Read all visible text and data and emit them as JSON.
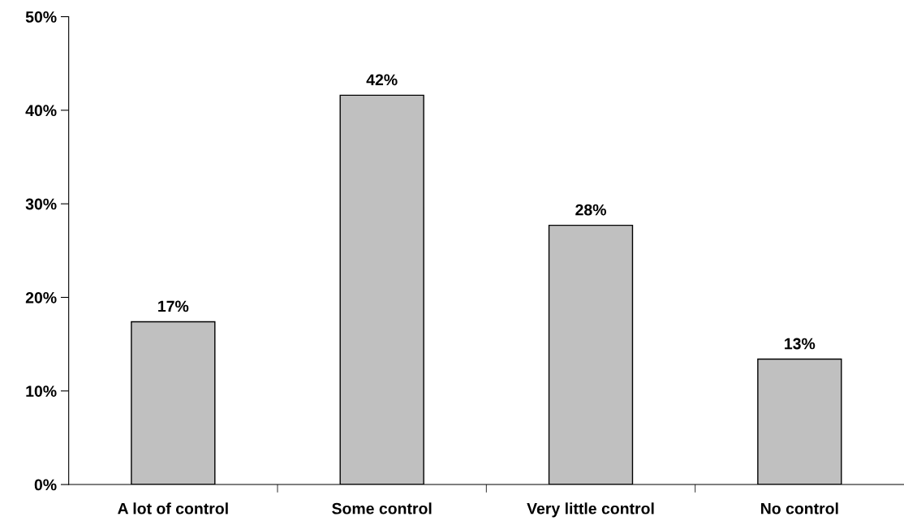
{
  "chart_data": {
    "type": "bar",
    "categories": [
      "A lot of control",
      "Some control",
      "Very little control",
      "No control"
    ],
    "values": [
      17.4,
      41.6,
      27.7,
      13.4
    ],
    "value_labels": [
      "17%",
      "42%",
      "28%",
      "13%"
    ],
    "color": "#c0c0c0",
    "ylim": [
      0,
      50
    ],
    "yticks": [
      {
        "value": 0,
        "label": "0%"
      },
      {
        "value": 10,
        "label": "10%"
      },
      {
        "value": 20,
        "label": "20%"
      },
      {
        "value": 30,
        "label": "30%"
      },
      {
        "value": 40,
        "label": "40%"
      },
      {
        "value": 50,
        "label": "50%"
      }
    ],
    "grid": false
  }
}
